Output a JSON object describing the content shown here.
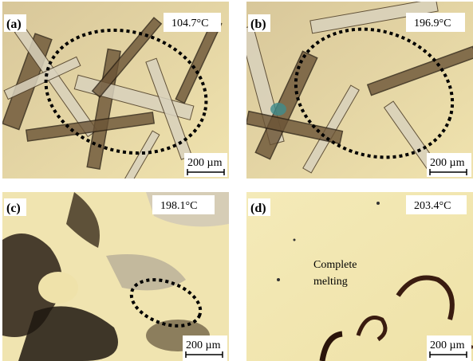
{
  "panels": [
    {
      "label": "(a)",
      "temperature": "104.7°C",
      "scale_bar": "200 µm"
    },
    {
      "label": "(b)",
      "temperature": "196.9°C",
      "scale_bar": "200 µm"
    },
    {
      "label": "(c)",
      "temperature": "198.1°C",
      "scale_bar": "200 µm"
    },
    {
      "label": "(d)",
      "temperature": "203.4°C",
      "scale_bar": "200 µm",
      "annotation": [
        "Complete",
        "melting"
      ]
    }
  ]
}
